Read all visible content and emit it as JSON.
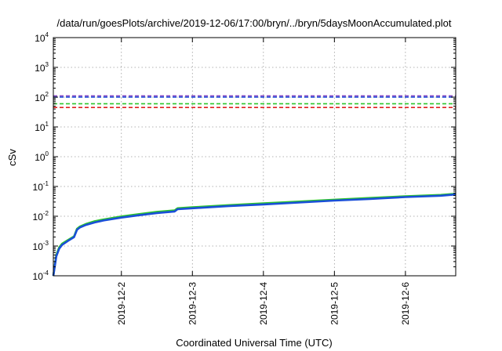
{
  "chart_data": {
    "type": "line",
    "title": "/data/run/goesPlots/archive/2019-12-06/17:00/bryn/../bryn/5daysMoonAccumulated.plot",
    "xlabel": "Coordinated Universal Time (UTC)",
    "ylabel": "cSv",
    "y_scale": "log",
    "ylim": [
      0.0001,
      10000
    ],
    "xlim": [
      "2019-12-01T01:00",
      "2019-12-06T17:00"
    ],
    "grid": true,
    "legend": "none",
    "y_ticks": [
      {
        "value": 0.0001,
        "base": "10",
        "exp": "-4"
      },
      {
        "value": 0.001,
        "base": "10",
        "exp": "-3"
      },
      {
        "value": 0.01,
        "base": "10",
        "exp": "-2"
      },
      {
        "value": 0.1,
        "base": "10",
        "exp": "-1"
      },
      {
        "value": 1,
        "base": "10",
        "exp": "0"
      },
      {
        "value": 10,
        "base": "10",
        "exp": "1"
      },
      {
        "value": 100,
        "base": "10",
        "exp": "2"
      },
      {
        "value": 1000,
        "base": "10",
        "exp": "3"
      },
      {
        "value": 10000,
        "base": "10",
        "exp": "4"
      }
    ],
    "x_ticks": [
      {
        "value": "2019-12-02T00:00",
        "label": "2019-12-2"
      },
      {
        "value": "2019-12-03T00:00",
        "label": "2019-12-3"
      },
      {
        "value": "2019-12-04T00:00",
        "label": "2019-12-4"
      },
      {
        "value": "2019-12-05T00:00",
        "label": "2019-12-5"
      },
      {
        "value": "2019-12-06T00:00",
        "label": "2019-12-6"
      }
    ],
    "reference_lines": [
      {
        "y": 110,
        "color": "#8040c0",
        "style": "dashed"
      },
      {
        "y": 100,
        "color": "#1a4fd8",
        "style": "dashed"
      },
      {
        "y": 60,
        "color": "#2cc52c",
        "style": "dashed"
      },
      {
        "y": 45,
        "color": "#e02020",
        "style": "dashed"
      }
    ],
    "series": [
      {
        "color": "#2cc52c",
        "x": [
          "2019-12-01T01:00",
          "2019-12-01T02:00",
          "2019-12-01T03:00",
          "2019-12-01T04:00",
          "2019-12-01T06:00",
          "2019-12-01T08:00",
          "2019-12-01T09:00",
          "2019-12-01T10:00",
          "2019-12-01T12:00",
          "2019-12-01T15:00",
          "2019-12-01T18:00",
          "2019-12-02T00:00",
          "2019-12-02T06:00",
          "2019-12-02T12:00",
          "2019-12-02T18:00",
          "2019-12-02T19:00",
          "2019-12-03T00:00",
          "2019-12-03T12:00",
          "2019-12-04T00:00",
          "2019-12-04T12:00",
          "2019-12-05T00:00",
          "2019-12-05T12:00",
          "2019-12-06T00:00",
          "2019-12-06T12:00",
          "2019-12-06T17:00"
        ],
        "y": [
          0.0001,
          0.0005,
          0.0009,
          0.0012,
          0.0016,
          0.0021,
          0.0038,
          0.0045,
          0.0055,
          0.0068,
          0.0078,
          0.0098,
          0.0118,
          0.014,
          0.0158,
          0.0186,
          0.02,
          0.0235,
          0.027,
          0.031,
          0.036,
          0.041,
          0.047,
          0.052,
          0.057
        ]
      },
      {
        "color": "#1a4fd8",
        "x": [
          "2019-12-01T01:00",
          "2019-12-01T02:00",
          "2019-12-01T03:00",
          "2019-12-01T04:00",
          "2019-12-01T06:00",
          "2019-12-01T08:00",
          "2019-12-01T09:00",
          "2019-12-01T10:00",
          "2019-12-01T12:00",
          "2019-12-01T15:00",
          "2019-12-01T18:00",
          "2019-12-02T00:00",
          "2019-12-02T06:00",
          "2019-12-02T12:00",
          "2019-12-02T18:00",
          "2019-12-02T19:00",
          "2019-12-03T00:00",
          "2019-12-03T12:00",
          "2019-12-04T00:00",
          "2019-12-04T12:00",
          "2019-12-05T00:00",
          "2019-12-05T12:00",
          "2019-12-06T00:00",
          "2019-12-06T12:00",
          "2019-12-06T17:00"
        ],
        "y": [
          0.0001,
          0.00045,
          0.00082,
          0.0011,
          0.0015,
          0.002,
          0.0035,
          0.0042,
          0.0051,
          0.0062,
          0.0072,
          0.009,
          0.0108,
          0.0128,
          0.0145,
          0.0172,
          0.0185,
          0.0218,
          0.025,
          0.0288,
          0.0335,
          0.0382,
          0.044,
          0.049,
          0.054
        ]
      }
    ]
  }
}
